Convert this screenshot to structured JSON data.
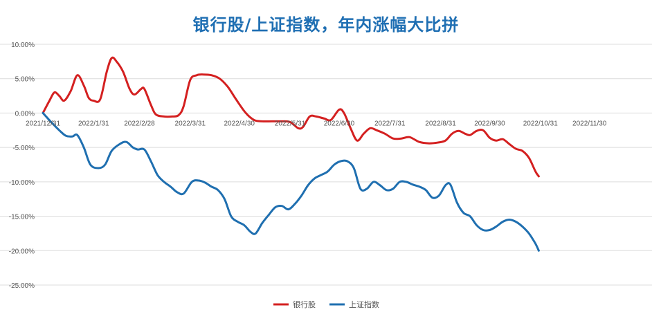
{
  "chart_data": {
    "type": "line",
    "title": "银行股/上证指数，年内涨幅大比拼",
    "xlabel": "",
    "ylabel": "",
    "ylim": [
      -0.25,
      0.1
    ],
    "yticks": [
      "10.00%",
      "5.00%",
      "0.00%",
      "-5.00%",
      "-10.00%",
      "-15.00%",
      "-20.00%",
      "-25.00%"
    ],
    "yticks_values": [
      0.1,
      0.05,
      0.0,
      -0.05,
      -0.1,
      -0.15,
      -0.2,
      -0.25
    ],
    "xlim": [
      "2021-12-31",
      "2022-12-31"
    ],
    "x_tick_labels": [
      "2021/12/31",
      "2022/1/31",
      "2022/2/28",
      "2022/3/31",
      "2022/4/30",
      "2022/5/31",
      "2022/6/30",
      "2022/7/31",
      "2022/8/31",
      "2022/9/30",
      "2022/10/31",
      "2022/11/30"
    ],
    "x_tick_dates": [
      "2021-12-31",
      "2022-01-31",
      "2022-02-28",
      "2022-03-31",
      "2022-04-30",
      "2022-05-31",
      "2022-06-30",
      "2022-07-31",
      "2022-08-31",
      "2022-09-30",
      "2022-10-31",
      "2022-11-30"
    ],
    "grid": true,
    "legend_position": "bottom",
    "series": [
      {
        "name": "银行股",
        "color": "#d42020",
        "points": [
          [
            "2021-12-31",
            0.0
          ],
          [
            "2022-01-04",
            0.018
          ],
          [
            "2022-01-07",
            0.03
          ],
          [
            "2022-01-10",
            0.025
          ],
          [
            "2022-01-13",
            0.018
          ],
          [
            "2022-01-17",
            0.032
          ],
          [
            "2022-01-21",
            0.055
          ],
          [
            "2022-01-25",
            0.04
          ],
          [
            "2022-01-28",
            0.022
          ],
          [
            "2022-01-31",
            0.018
          ],
          [
            "2022-02-04",
            0.02
          ],
          [
            "2022-02-08",
            0.06
          ],
          [
            "2022-02-11",
            0.08
          ],
          [
            "2022-02-14",
            0.075
          ],
          [
            "2022-02-18",
            0.06
          ],
          [
            "2022-02-22",
            0.035
          ],
          [
            "2022-02-25",
            0.027
          ],
          [
            "2022-03-01",
            0.035
          ],
          [
            "2022-03-03",
            0.035
          ],
          [
            "2022-03-07",
            0.012
          ],
          [
            "2022-03-10",
            -0.002
          ],
          [
            "2022-03-15",
            -0.005
          ],
          [
            "2022-03-20",
            -0.005
          ],
          [
            "2022-03-24",
            -0.003
          ],
          [
            "2022-03-27",
            0.01
          ],
          [
            "2022-03-31",
            0.048
          ],
          [
            "2022-04-04",
            0.055
          ],
          [
            "2022-04-08",
            0.056
          ],
          [
            "2022-04-13",
            0.055
          ],
          [
            "2022-04-18",
            0.05
          ],
          [
            "2022-04-23",
            0.038
          ],
          [
            "2022-04-28",
            0.02
          ],
          [
            "2022-05-04",
            0.0
          ],
          [
            "2022-05-09",
            -0.01
          ],
          [
            "2022-05-14",
            -0.012
          ],
          [
            "2022-05-20",
            -0.012
          ],
          [
            "2022-05-26",
            -0.012
          ],
          [
            "2022-05-31",
            -0.013
          ],
          [
            "2022-06-05",
            -0.022
          ],
          [
            "2022-06-08",
            -0.02
          ],
          [
            "2022-06-12",
            -0.005
          ],
          [
            "2022-06-16",
            -0.005
          ],
          [
            "2022-06-21",
            -0.008
          ],
          [
            "2022-06-25",
            -0.01
          ],
          [
            "2022-06-30",
            0.005
          ],
          [
            "2022-07-03",
            0.0
          ],
          [
            "2022-07-07",
            -0.022
          ],
          [
            "2022-07-11",
            -0.04
          ],
          [
            "2022-07-15",
            -0.03
          ],
          [
            "2022-07-19",
            -0.022
          ],
          [
            "2022-07-23",
            -0.025
          ],
          [
            "2022-07-28",
            -0.03
          ],
          [
            "2022-08-02",
            -0.037
          ],
          [
            "2022-08-07",
            -0.037
          ],
          [
            "2022-08-12",
            -0.035
          ],
          [
            "2022-08-18",
            -0.042
          ],
          [
            "2022-08-24",
            -0.044
          ],
          [
            "2022-08-29",
            -0.043
          ],
          [
            "2022-09-03",
            -0.04
          ],
          [
            "2022-09-07",
            -0.03
          ],
          [
            "2022-09-11",
            -0.026
          ],
          [
            "2022-09-15",
            -0.03
          ],
          [
            "2022-09-18",
            -0.032
          ],
          [
            "2022-09-22",
            -0.026
          ],
          [
            "2022-09-26",
            -0.025
          ],
          [
            "2022-09-30",
            -0.036
          ],
          [
            "2022-10-04",
            -0.04
          ],
          [
            "2022-10-08",
            -0.038
          ],
          [
            "2022-10-12",
            -0.045
          ],
          [
            "2022-10-16",
            -0.052
          ],
          [
            "2022-10-20",
            -0.055
          ],
          [
            "2022-10-24",
            -0.065
          ],
          [
            "2022-10-28",
            -0.085
          ],
          [
            "2022-10-30",
            -0.092
          ]
        ]
      },
      {
        "name": "上证指数",
        "color": "#1f6fb0",
        "points": [
          [
            "2021-12-31",
            0.0
          ],
          [
            "2022-01-05",
            -0.013
          ],
          [
            "2022-01-10",
            -0.025
          ],
          [
            "2022-01-14",
            -0.033
          ],
          [
            "2022-01-18",
            -0.034
          ],
          [
            "2022-01-21",
            -0.032
          ],
          [
            "2022-01-25",
            -0.05
          ],
          [
            "2022-01-29",
            -0.075
          ],
          [
            "2022-02-03",
            -0.08
          ],
          [
            "2022-02-07",
            -0.075
          ],
          [
            "2022-02-11",
            -0.055
          ],
          [
            "2022-02-16",
            -0.045
          ],
          [
            "2022-02-20",
            -0.042
          ],
          [
            "2022-02-24",
            -0.05
          ],
          [
            "2022-02-27",
            -0.053
          ],
          [
            "2022-03-03",
            -0.053
          ],
          [
            "2022-03-07",
            -0.07
          ],
          [
            "2022-03-11",
            -0.09
          ],
          [
            "2022-03-15",
            -0.1
          ],
          [
            "2022-03-19",
            -0.107
          ],
          [
            "2022-03-23",
            -0.115
          ],
          [
            "2022-03-27",
            -0.117
          ],
          [
            "2022-04-01",
            -0.1
          ],
          [
            "2022-04-05",
            -0.098
          ],
          [
            "2022-04-09",
            -0.101
          ],
          [
            "2022-04-13",
            -0.107
          ],
          [
            "2022-04-17",
            -0.112
          ],
          [
            "2022-04-21",
            -0.125
          ],
          [
            "2022-04-25",
            -0.15
          ],
          [
            "2022-04-29",
            -0.158
          ],
          [
            "2022-05-03",
            -0.163
          ],
          [
            "2022-05-07",
            -0.173
          ],
          [
            "2022-05-10",
            -0.175
          ],
          [
            "2022-05-14",
            -0.16
          ],
          [
            "2022-05-18",
            -0.148
          ],
          [
            "2022-05-22",
            -0.137
          ],
          [
            "2022-05-26",
            -0.135
          ],
          [
            "2022-05-30",
            -0.14
          ],
          [
            "2022-06-03",
            -0.132
          ],
          [
            "2022-06-07",
            -0.12
          ],
          [
            "2022-06-11",
            -0.105
          ],
          [
            "2022-06-15",
            -0.095
          ],
          [
            "2022-06-19",
            -0.09
          ],
          [
            "2022-06-23",
            -0.085
          ],
          [
            "2022-06-27",
            -0.075
          ],
          [
            "2022-07-01",
            -0.07
          ],
          [
            "2022-07-05",
            -0.07
          ],
          [
            "2022-07-09",
            -0.08
          ],
          [
            "2022-07-13",
            -0.11
          ],
          [
            "2022-07-17",
            -0.11
          ],
          [
            "2022-07-21",
            -0.1
          ],
          [
            "2022-07-25",
            -0.105
          ],
          [
            "2022-07-29",
            -0.112
          ],
          [
            "2022-08-02",
            -0.11
          ],
          [
            "2022-08-06",
            -0.1
          ],
          [
            "2022-08-10",
            -0.1
          ],
          [
            "2022-08-14",
            -0.104
          ],
          [
            "2022-08-18",
            -0.107
          ],
          [
            "2022-08-22",
            -0.112
          ],
          [
            "2022-08-26",
            -0.123
          ],
          [
            "2022-08-30",
            -0.12
          ],
          [
            "2022-09-03",
            -0.105
          ],
          [
            "2022-09-06",
            -0.104
          ],
          [
            "2022-09-10",
            -0.13
          ],
          [
            "2022-09-14",
            -0.145
          ],
          [
            "2022-09-18",
            -0.15
          ],
          [
            "2022-09-22",
            -0.163
          ],
          [
            "2022-09-26",
            -0.17
          ],
          [
            "2022-09-30",
            -0.17
          ],
          [
            "2022-10-04",
            -0.165
          ],
          [
            "2022-10-08",
            -0.158
          ],
          [
            "2022-10-12",
            -0.155
          ],
          [
            "2022-10-16",
            -0.158
          ],
          [
            "2022-10-20",
            -0.165
          ],
          [
            "2022-10-24",
            -0.175
          ],
          [
            "2022-10-28",
            -0.19
          ],
          [
            "2022-10-30",
            -0.2
          ]
        ]
      }
    ]
  }
}
